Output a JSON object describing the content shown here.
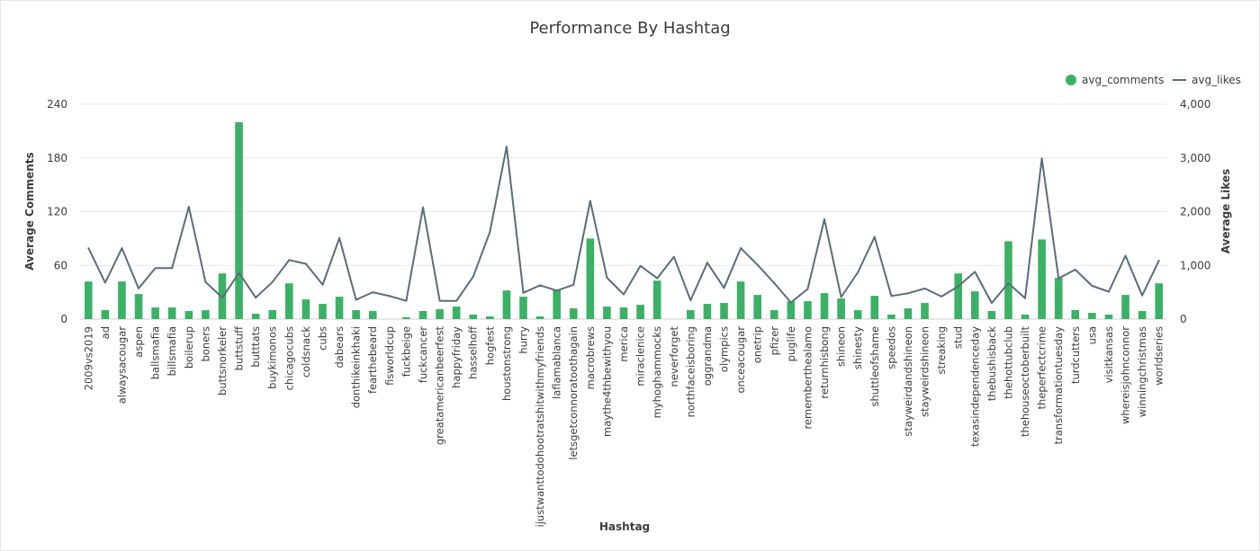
{
  "chart_data": {
    "type": "bar",
    "title": "Performance By Hashtag",
    "xlabel": "Hashtag",
    "ylabel": "Average Comments",
    "y2label": "Average Likes",
    "ylim": [
      0,
      240
    ],
    "y2lim": [
      0,
      4000
    ],
    "y_ticks": [
      "0",
      "60",
      "120",
      "180",
      "240"
    ],
    "y2_ticks": [
      "0",
      "1,000",
      "2,000",
      "3,000",
      "4,000"
    ],
    "legend": {
      "position": "top-right",
      "bar_label": "avg_comments",
      "line_label": "avg_likes"
    },
    "colors": {
      "bars": "#3bb166",
      "line": "#5a6e78"
    },
    "categories": [
      "2009vs2019",
      "ad",
      "alwaysacougar",
      "aspen",
      "ballsmafia",
      "billsmafia",
      "boilerup",
      "boners",
      "buttsnorkeler",
      "buttstuff",
      "butttats",
      "buykimonos",
      "chicagocubs",
      "coldsnack",
      "cubs",
      "dabears",
      "donthikeinkhaki",
      "fearthebeard",
      "fisworldcup",
      "fuckbeige",
      "fuckcancer",
      "greatamericanbeerfest",
      "happyfriday",
      "hasselhoff",
      "hogfest",
      "houstonstrong",
      "hurry",
      "ijustwanttodohootratshitwithmyfriends",
      "laflamablanca",
      "letsgetconnoratoothagain",
      "macrobrews",
      "maythe4thbewithyou",
      "merica",
      "miraclenice",
      "myhoghammocks",
      "neverforget",
      "northfaceisboring",
      "oggrandma",
      "olympics",
      "onceacougar",
      "onetrip",
      "pfizer",
      "puglife",
      "rememberthealamo",
      "returnhisbong",
      "shineon",
      "shinesty",
      "shuttleofshame",
      "speedos",
      "stayweirdandshineon",
      "stayweirdshineon",
      "streaking",
      "stud",
      "texasindependenceday",
      "thebushisback",
      "thehottubclub",
      "thehouseoctoberbuilt",
      "theperfectcrime",
      "transformationtuesday",
      "turdcutters",
      "usa",
      "visitkansas",
      "whereisjohnconnor",
      "winningchristmas",
      "worldseries"
    ],
    "series": [
      {
        "name": "avg_comments",
        "type": "bar",
        "axis": "left",
        "values": [
          42,
          10,
          42,
          28,
          13,
          13,
          9,
          10,
          51,
          220,
          6,
          10,
          40,
          22,
          17,
          25,
          10,
          9,
          0,
          2,
          9,
          11,
          14,
          5,
          3,
          32,
          25,
          3,
          33,
          12,
          90,
          14,
          13,
          16,
          43,
          0,
          10,
          17,
          18,
          42,
          27,
          10,
          20,
          20,
          29,
          23,
          10,
          26,
          5,
          12,
          18,
          0,
          51,
          31,
          9,
          87,
          5,
          89,
          46,
          10,
          7,
          5,
          27,
          9,
          40
        ]
      },
      {
        "name": "avg_likes",
        "type": "line",
        "axis": "right",
        "values": [
          1320,
          680,
          1320,
          570,
          950,
          950,
          2090,
          690,
          400,
          860,
          400,
          690,
          1100,
          1030,
          640,
          1510,
          360,
          500,
          430,
          340,
          2080,
          340,
          340,
          790,
          1620,
          3210,
          490,
          630,
          530,
          640,
          2200,
          770,
          460,
          990,
          760,
          1160,
          350,
          1050,
          580,
          1320,
          1010,
          670,
          310,
          560,
          1860,
          410,
          870,
          1530,
          430,
          480,
          570,
          420,
          610,
          880,
          300,
          670,
          390,
          2990,
          760,
          920,
          620,
          510,
          1180,
          440,
          1090
        ]
      }
    ]
  }
}
